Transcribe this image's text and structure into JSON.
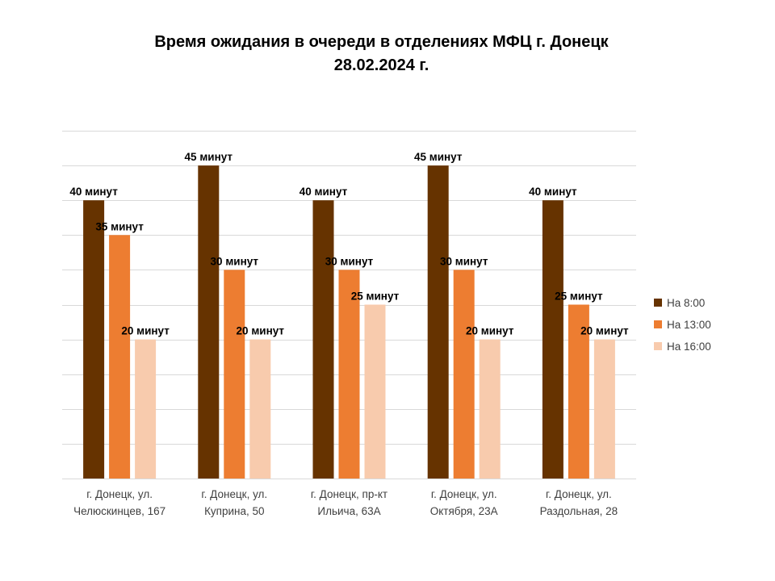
{
  "chart_data": {
    "type": "bar",
    "title_line1": "Время ожидания в очереди в отделениях МФЦ г. Донецк",
    "title_line2": "28.02.2024 г.",
    "categories": [
      [
        "г. Донецк, ул.",
        "Челюскинцев, 167"
      ],
      [
        "г. Донецк, ул.",
        "Куприна, 50"
      ],
      [
        "г. Донецк, пр-кт",
        "Ильича, 63А"
      ],
      [
        "г. Донецк, ул.",
        "Октября, 23А"
      ],
      [
        "г. Донецк, ул.",
        "Раздольная, 28"
      ]
    ],
    "value_suffix": " минут",
    "ylim": [
      0,
      50
    ],
    "grid": true,
    "legend_position": "right",
    "series": [
      {
        "name": "На 8:00",
        "color": "#663300",
        "values": [
          40,
          45,
          40,
          45,
          40
        ]
      },
      {
        "name": "На 13:00",
        "color": "#ed7d31",
        "values": [
          35,
          30,
          30,
          30,
          25
        ]
      },
      {
        "name": "На 16:00",
        "color": "#f8cbad",
        "values": [
          20,
          20,
          25,
          20,
          20
        ]
      }
    ]
  }
}
